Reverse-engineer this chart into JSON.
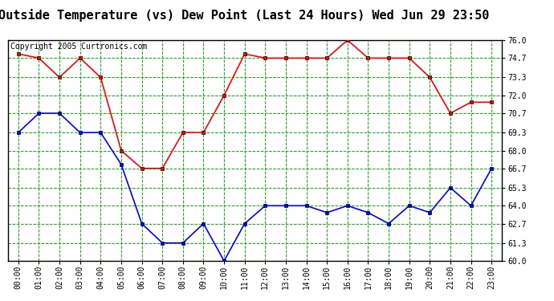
{
  "title": "Outside Temperature (vs) Dew Point (Last 24 Hours) Wed Jun 29 23:50",
  "copyright": "Copyright 2005 Curtronics.com",
  "hours": [
    "00:00",
    "01:00",
    "02:00",
    "03:00",
    "04:00",
    "05:00",
    "06:00",
    "07:00",
    "08:00",
    "09:00",
    "10:00",
    "11:00",
    "12:00",
    "13:00",
    "14:00",
    "15:00",
    "16:00",
    "17:00",
    "18:00",
    "19:00",
    "20:00",
    "21:00",
    "22:00",
    "23:00"
  ],
  "temp": [
    75.0,
    74.7,
    73.3,
    74.7,
    73.3,
    68.0,
    66.7,
    66.7,
    69.3,
    69.3,
    72.0,
    75.0,
    74.7,
    74.7,
    74.7,
    74.7,
    76.0,
    74.7,
    74.7,
    74.7,
    73.3,
    70.7,
    71.5,
    71.5
  ],
  "dew": [
    69.3,
    70.7,
    70.7,
    69.3,
    69.3,
    67.0,
    62.7,
    61.3,
    61.3,
    62.7,
    60.0,
    62.7,
    64.0,
    64.0,
    64.0,
    63.5,
    64.0,
    63.5,
    62.7,
    64.0,
    63.5,
    65.3,
    64.0,
    66.7
  ],
  "temp_color": "#ff0000",
  "dew_color": "#0000ff",
  "bg_color": "#ffffff",
  "plot_bg_color": "#ffffff",
  "grid_color": "#00bb00",
  "ylim_min": 60.0,
  "ylim_max": 76.0,
  "yticks": [
    60.0,
    61.3,
    62.7,
    64.0,
    65.3,
    66.7,
    68.0,
    69.3,
    70.7,
    72.0,
    73.3,
    74.7,
    76.0
  ],
  "title_fontsize": 11,
  "tick_fontsize": 7,
  "copyright_fontsize": 7,
  "markersize": 3.5,
  "linewidth": 1.2
}
